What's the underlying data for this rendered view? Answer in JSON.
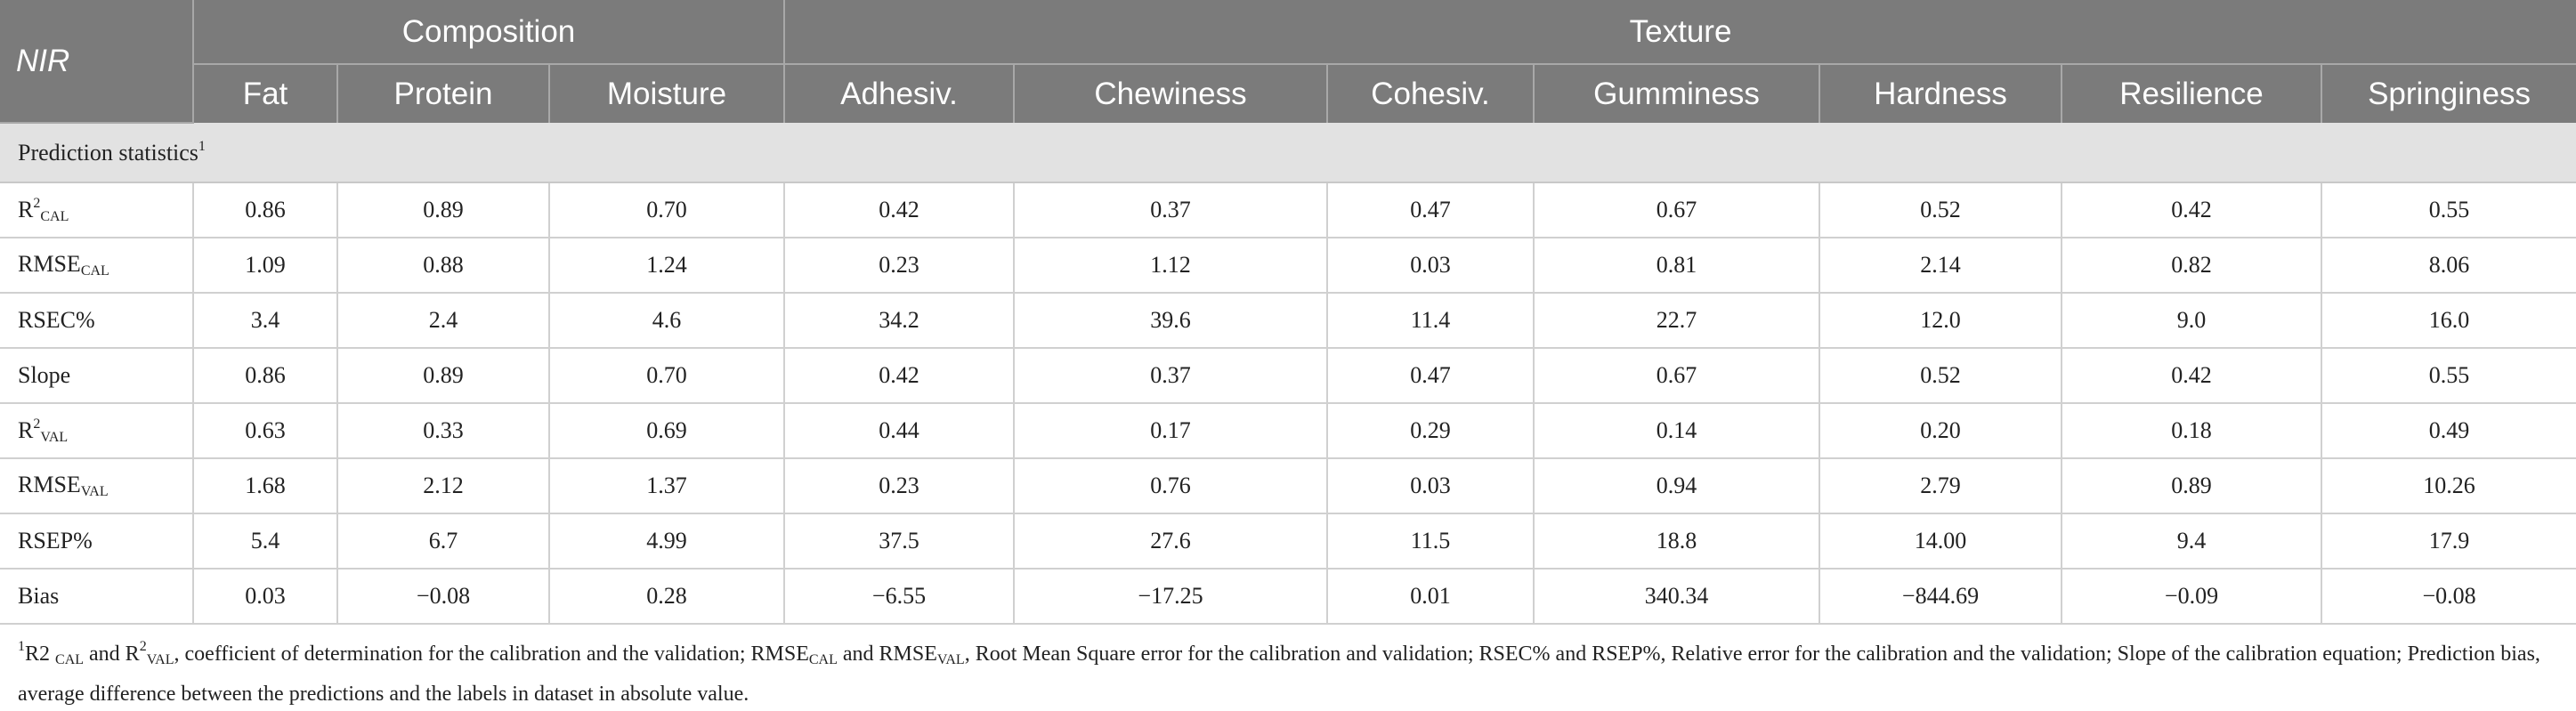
{
  "header": {
    "nir": "NIR",
    "group_composition": "Composition",
    "group_texture": "Texture",
    "columns": [
      "Fat",
      "Protein",
      "Moisture",
      "Adhesiv.",
      "Chewiness",
      "Cohesiv.",
      "Gumminess",
      "Hardness",
      "Resilience",
      "Springiness"
    ]
  },
  "section": {
    "label": "Prediction statistics",
    "sup": "1"
  },
  "rows": [
    {
      "label": {
        "base": "R",
        "sup": "2",
        "sub": "CAL"
      },
      "values": [
        "0.86",
        "0.89",
        "0.70",
        "0.42",
        "0.37",
        "0.47",
        "0.67",
        "0.52",
        "0.42",
        "0.55"
      ]
    },
    {
      "label": {
        "base": "RMSE",
        "sup": "",
        "sub": "CAL"
      },
      "values": [
        "1.09",
        "0.88",
        "1.24",
        "0.23",
        "1.12",
        "0.03",
        "0.81",
        "2.14",
        "0.82",
        "8.06"
      ]
    },
    {
      "label": {
        "base": "RSEC%",
        "sup": "",
        "sub": ""
      },
      "values": [
        "3.4",
        "2.4",
        "4.6",
        "34.2",
        "39.6",
        "11.4",
        "22.7",
        "12.0",
        "9.0",
        "16.0"
      ]
    },
    {
      "label": {
        "base": "Slope",
        "sup": "",
        "sub": ""
      },
      "values": [
        "0.86",
        "0.89",
        "0.70",
        "0.42",
        "0.37",
        "0.47",
        "0.67",
        "0.52",
        "0.42",
        "0.55"
      ]
    },
    {
      "label": {
        "base": "R",
        "sup": "2",
        "sub": "VAL"
      },
      "values": [
        "0.63",
        "0.33",
        "0.69",
        "0.44",
        "0.17",
        "0.29",
        "0.14",
        "0.20",
        "0.18",
        "0.49"
      ]
    },
    {
      "label": {
        "base": "RMSE",
        "sup": "",
        "sub": "VAL"
      },
      "values": [
        "1.68",
        "2.12",
        "1.37",
        "0.23",
        "0.76",
        "0.03",
        "0.94",
        "2.79",
        "0.89",
        "10.26"
      ]
    },
    {
      "label": {
        "base": "RSEP%",
        "sup": "",
        "sub": ""
      },
      "values": [
        "5.4",
        "6.7",
        "4.99",
        "37.5",
        "27.6",
        "11.5",
        "18.8",
        "14.00",
        "9.4",
        "17.9"
      ]
    },
    {
      "label": {
        "base": "Bias",
        "sup": "",
        "sub": ""
      },
      "values": [
        "0.03",
        "−0.08",
        "0.28",
        "−6.55",
        "−17.25",
        "0.01",
        "340.34",
        "−844.69",
        "−0.09",
        "−0.08"
      ]
    }
  ],
  "footnote": {
    "sup": "1",
    "text": "R2 CAL and R2VAL, coefficient of determination for the calibration and the validation; RMSECAL and RMSEVAL, Root Mean Square error for the calibration and validation; RSEC% and RSEP%, Relative error for the calibration and the validation; Slope of the calibration equation; Prediction bias, average difference between the predictions and the labels in dataset in absolute value."
  }
}
